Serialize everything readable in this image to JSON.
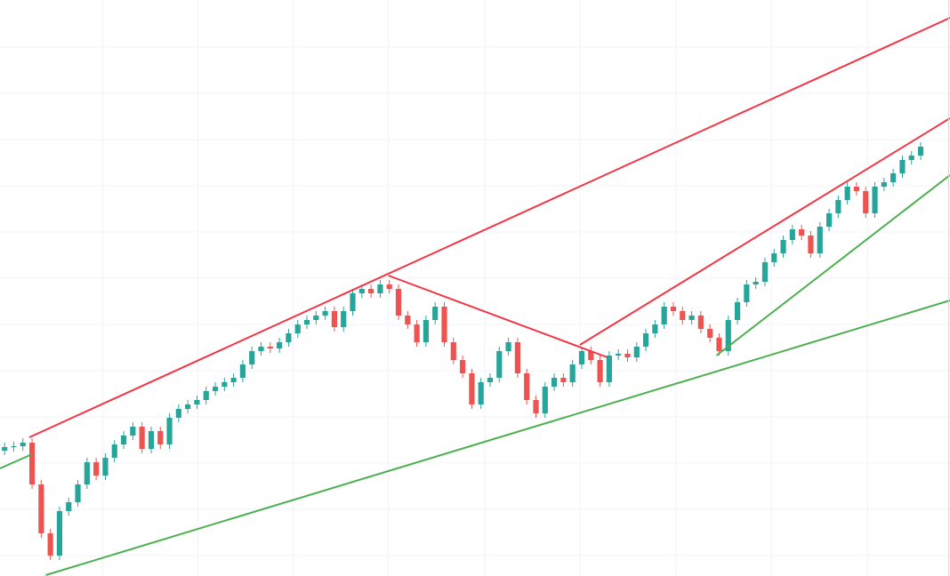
{
  "chart_data": {
    "type": "candlestick",
    "xlim": [
      -0.5,
      103.2
    ],
    "ylim": [
      0,
      648
    ],
    "xticks": [
      10.7,
      21.1,
      31.5,
      41.9,
      52.4,
      62.8,
      73.3,
      83.7,
      94.2
    ],
    "yticks": [
      23,
      75,
      127,
      179,
      231,
      283,
      335,
      387,
      439,
      491,
      543,
      595
    ],
    "grid": true,
    "up_color": "#26a69a",
    "down_color": "#ef5350",
    "x": [
      0,
      1,
      2,
      3,
      4,
      5,
      6,
      7,
      8,
      9,
      10,
      11,
      12,
      13,
      14,
      15,
      16,
      17,
      18,
      19,
      20,
      21,
      22,
      23,
      24,
      25,
      26,
      27,
      28,
      29,
      30,
      31,
      32,
      33,
      34,
      35,
      36,
      37,
      38,
      39,
      40,
      41,
      42,
      43,
      44,
      45,
      46,
      47,
      48,
      49,
      50,
      51,
      52,
      53,
      54,
      55,
      56,
      57,
      58,
      59,
      60,
      61,
      62,
      63,
      64,
      65,
      66,
      67,
      68,
      69,
      70,
      71,
      72,
      73,
      74,
      75,
      76,
      77,
      78,
      79,
      80,
      81,
      82,
      83,
      84,
      85,
      86,
      87,
      88,
      89,
      90,
      91,
      92,
      93,
      94,
      95,
      96,
      97,
      98,
      99,
      100
    ],
    "open": [
      141,
      145,
      146,
      150,
      103,
      48,
      23,
      73,
      83,
      103,
      128,
      113,
      133,
      148,
      158,
      168,
      143,
      163,
      148,
      178,
      188,
      193,
      198,
      208,
      213,
      218,
      223,
      238,
      253,
      258,
      256,
      263,
      273,
      283,
      288,
      293,
      298,
      280,
      298,
      318,
      323,
      318,
      328,
      323,
      293,
      283,
      263,
      288,
      303,
      263,
      243,
      228,
      193,
      218,
      223,
      253,
      263,
      228,
      198,
      183,
      213,
      223,
      218,
      238,
      253,
      243,
      218,
      248,
      250,
      246,
      258,
      273,
      283,
      303,
      298,
      288,
      293,
      278,
      268,
      253,
      288,
      308,
      328,
      331,
      353,
      363,
      378,
      390,
      383,
      363,
      393,
      408,
      423,
      438,
      433,
      408,
      438,
      443,
      453,
      468,
      473
    ],
    "high": [
      150,
      151,
      155,
      155,
      108,
      53,
      78,
      88,
      108,
      133,
      133,
      138,
      153,
      163,
      173,
      173,
      168,
      168,
      183,
      193,
      198,
      203,
      213,
      218,
      223,
      228,
      243,
      258,
      263,
      263,
      268,
      278,
      288,
      293,
      298,
      303,
      303,
      303,
      323,
      328,
      328,
      333,
      333,
      328,
      298,
      288,
      293,
      308,
      308,
      268,
      248,
      233,
      223,
      228,
      258,
      268,
      268,
      233,
      203,
      218,
      228,
      228,
      243,
      258,
      258,
      248,
      253,
      255,
      255,
      263,
      278,
      288,
      308,
      308,
      303,
      298,
      298,
      283,
      273,
      293,
      313,
      333,
      336,
      358,
      368,
      383,
      395,
      395,
      388,
      398,
      413,
      428,
      443,
      443,
      438,
      443,
      448,
      458,
      473,
      478,
      488
    ],
    "low": [
      136,
      140,
      141,
      98,
      43,
      18,
      18,
      68,
      78,
      98,
      108,
      108,
      128,
      143,
      153,
      138,
      138,
      143,
      143,
      173,
      183,
      188,
      193,
      203,
      208,
      213,
      218,
      233,
      248,
      251,
      251,
      258,
      268,
      278,
      283,
      288,
      275,
      275,
      293,
      313,
      313,
      313,
      318,
      288,
      278,
      258,
      258,
      283,
      258,
      238,
      223,
      188,
      188,
      213,
      218,
      248,
      223,
      193,
      178,
      178,
      208,
      213,
      213,
      233,
      238,
      213,
      213,
      243,
      241,
      241,
      253,
      268,
      278,
      293,
      283,
      283,
      273,
      263,
      248,
      248,
      283,
      303,
      323,
      326,
      348,
      358,
      373,
      378,
      358,
      358,
      388,
      403,
      418,
      428,
      403,
      403,
      433,
      438,
      448,
      463,
      468
    ],
    "close": [
      145,
      146,
      150,
      103,
      48,
      23,
      73,
      83,
      103,
      128,
      113,
      133,
      148,
      158,
      168,
      143,
      163,
      148,
      178,
      188,
      193,
      198,
      208,
      213,
      218,
      223,
      238,
      253,
      258,
      256,
      263,
      273,
      283,
      288,
      293,
      298,
      280,
      298,
      318,
      323,
      318,
      328,
      323,
      293,
      283,
      263,
      288,
      303,
      263,
      243,
      228,
      193,
      218,
      223,
      253,
      263,
      228,
      198,
      183,
      213,
      223,
      218,
      238,
      253,
      243,
      218,
      248,
      250,
      246,
      258,
      273,
      283,
      303,
      298,
      288,
      293,
      278,
      268,
      253,
      288,
      308,
      328,
      331,
      353,
      363,
      378,
      390,
      383,
      363,
      393,
      408,
      423,
      438,
      433,
      408,
      438,
      443,
      453,
      468,
      473,
      483
    ],
    "trendlines": [
      {
        "color": "#f23645",
        "x": [
          2.7,
          103.2
        ],
        "y": [
          156,
          628
        ]
      },
      {
        "color": "#f23645",
        "x": [
          41.9,
          65.8
        ],
        "y": [
          338,
          246
        ]
      },
      {
        "color": "#f23645",
        "x": [
          62.8,
          103.2
        ],
        "y": [
          260,
          515
        ]
      },
      {
        "color": "#4caf50",
        "x": [
          -0.5,
          3.0
        ],
        "y": [
          121,
          137
        ]
      },
      {
        "color": "#4caf50",
        "x": [
          4.5,
          103.2
        ],
        "y": [
          1,
          310
        ]
      },
      {
        "color": "#4caf50",
        "x": [
          77.7,
          103.2
        ],
        "y": [
          248,
          451
        ]
      }
    ]
  }
}
